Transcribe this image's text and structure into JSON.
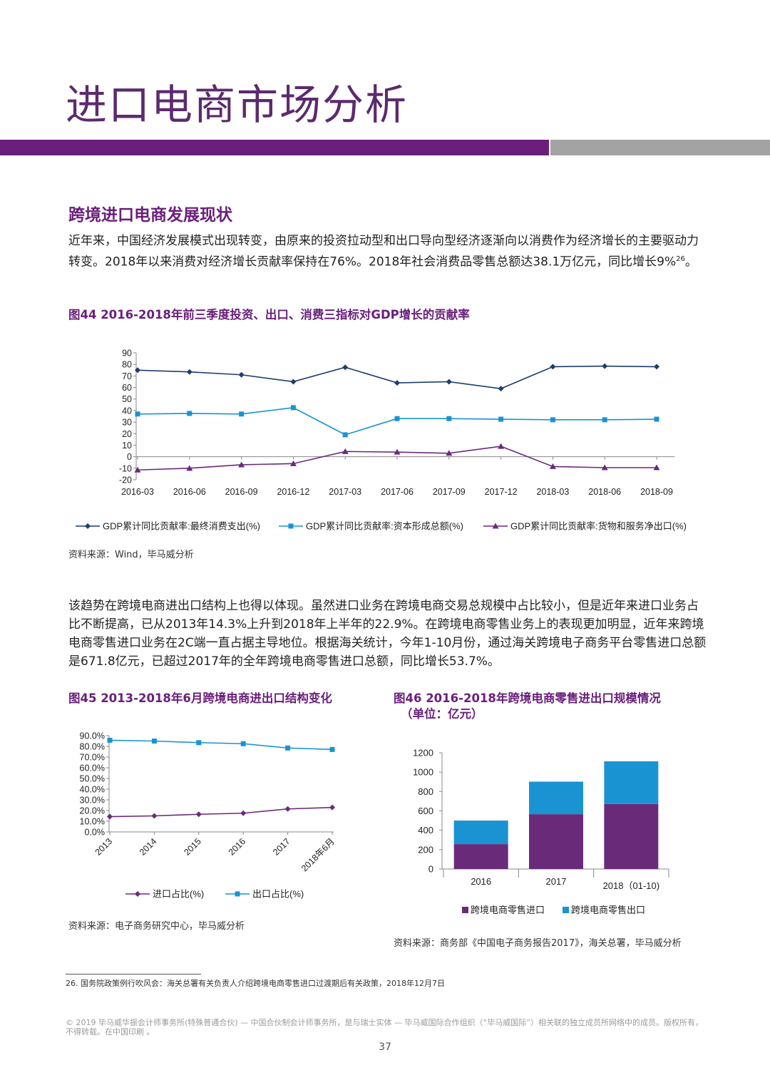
{
  "page": {
    "title": "进口电商市场分析",
    "section_title": "跨境进口电商发展现状",
    "para1": "近年来，中国经济发展模式出现转变，由原来的投资拉动型和出口导向型经济逐渐向以消费作为经济增长的主要驱动力转变。2018年以来消费对经济增长贡献率保持在76%。2018年社会消费品零售总额达38.1万亿元，同比增长9%",
    "para1_ref": "26",
    "para1_end": "。",
    "para2": "该趋势在跨境电商进出口结构上也得以体现。虽然进口业务在跨境电商交易总规模中占比较小，但是近年来进口业务占比不断提高，已从2013年14.3%上升到2018年上半年的22.9%。在跨境电商零售业务上的表现更加明显，近年来跨境电商零售进口业务在2C端一直占据主导地位。根据海关统计，今年1-10月份，通过海关跨境电子商务平台零售进口总额是671.8亿元，已超过2017年的全年跨境电商零售进口总额，同比增长53.7%。",
    "fig44_title": "图44 2016-2018年前三季度投资、出口、消费三指标对GDP增长的贡献率",
    "fig44_source": "资料来源：Wind，毕马威分析",
    "fig45_title": "图45 2013-2018年6月跨境电商进出口结构变化",
    "fig45_source": "资料来源：电子商务研究中心，毕马威分析",
    "fig46_title": "图46 2016-2018年跨境电商零售进出口规模情况",
    "fig46_subtitle": "（单位：亿元）",
    "fig46_source": "资料来源：商务部《中国电子商务报告2017》，海关总署，毕马威分析",
    "footnote": "26. 国务院政策例行吹风会：海关总署有关负责人介绍跨境电商零售进口过渡期后有关政策，2018年12月7日",
    "footer_copyright": "© 2019 毕马威华振会计师事务所(特殊普通合伙) — 中国合伙制会计师事务所，是与瑞士实体 — 毕马威国际合作组织（“毕马威国际”）相关联的独立成员所网络中的成员。版权所有，不得转载。在中国印刷 。",
    "page_number": "37",
    "colors": {
      "brand_purple": "#6a1f7c",
      "grey_bar": "#a3a3a3",
      "navy": "#1f3c6e",
      "cyan": "#1a93d2",
      "purple_line": "#6a2a7a"
    }
  },
  "chart_data": [
    {
      "type": "line",
      "categories": [
        "2016-03",
        "2016-06",
        "2016-09",
        "2016-12",
        "2017-03",
        "2017-06",
        "2017-09",
        "2017-12",
        "2018-03",
        "2018-06",
        "2018-09"
      ],
      "ylim": [
        -20,
        90
      ],
      "yticks": [
        "90",
        "80",
        "70",
        "60",
        "50",
        "40",
        "30",
        "20",
        "10",
        "0",
        "-10",
        "-20"
      ],
      "series": [
        {
          "name": "GDP累计同比贡献率:最终消费支出(%)",
          "marker": "diamond",
          "color": "#1f3c6e",
          "values": [
            75,
            73.5,
            71,
            65,
            77.5,
            64,
            65,
            59,
            78,
            78.5,
            78
          ]
        },
        {
          "name": "GDP累计同比贡献率:资本形成总额(%)",
          "marker": "square",
          "color": "#1a93d2",
          "values": [
            37,
            37.5,
            37,
            42.5,
            19,
            33,
            33,
            32.5,
            32,
            32,
            32.5
          ]
        },
        {
          "name": "GDP累计同比贡献率:货物和服务净出口(%)",
          "marker": "triangle",
          "color": "#6a2a7a",
          "values": [
            -11.5,
            -10,
            -7,
            -6,
            4.5,
            4,
            3,
            9,
            -8.5,
            -9.5,
            -9.5
          ]
        }
      ],
      "legend": "bottom"
    },
    {
      "type": "line",
      "categories": [
        "2013",
        "2014",
        "2015",
        "2016",
        "2017",
        "2018年6月"
      ],
      "ylim": [
        0,
        90
      ],
      "yticks": [
        "90.0%",
        "80.0%",
        "70.0%",
        "60.0%",
        "50.0%",
        "40.0%",
        "30.0%",
        "20.0%",
        "10.0%",
        "0.0%"
      ],
      "series": [
        {
          "name": "进口占比(%)",
          "marker": "diamond",
          "color": "#6a2a7a",
          "values": [
            14.3,
            15,
            16.5,
            17.5,
            21.5,
            22.9
          ]
        },
        {
          "name": "出口占比(%)",
          "marker": "square",
          "color": "#1a93d2",
          "values": [
            85.7,
            85,
            83.5,
            82.5,
            78.5,
            77.1
          ]
        }
      ],
      "legend": "bottom"
    },
    {
      "type": "bar",
      "stacked": true,
      "categories": [
        "2016",
        "2017",
        "2018（01-10)"
      ],
      "ylim": [
        0,
        1200
      ],
      "yticks": [
        "1200",
        "1000",
        "800",
        "600",
        "400",
        "200",
        "0"
      ],
      "series": [
        {
          "name": "跨境电商零售进口",
          "color": "#6a2a7a",
          "values": [
            257,
            566,
            672
          ]
        },
        {
          "name": "跨境电商零售出口",
          "color": "#1a93d2",
          "values": [
            243,
            336,
            440
          ]
        }
      ],
      "legend": "bottom"
    }
  ]
}
